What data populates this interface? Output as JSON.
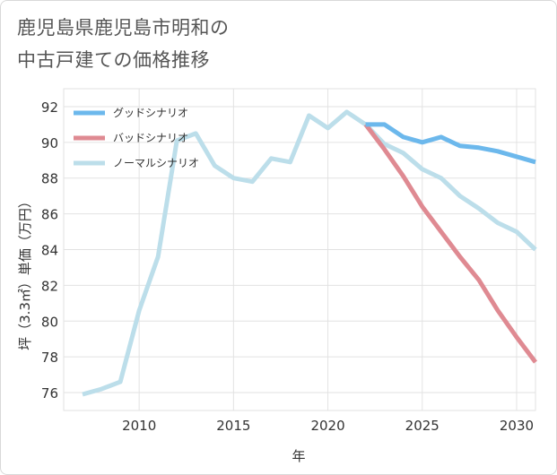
{
  "title": {
    "line1": "鹿児島県鹿児島市明和の",
    "line2": "中古戸建ての価格推移"
  },
  "chart_data": {
    "type": "line",
    "xlabel": "年",
    "ylabel": "坪（3.3㎡）単価（万円）",
    "xlim": [
      2006,
      2031
    ],
    "ylim": [
      75,
      93
    ],
    "xticks": [
      2010,
      2015,
      2020,
      2025,
      2030
    ],
    "yticks": [
      76,
      78,
      80,
      82,
      84,
      86,
      88,
      90,
      92
    ],
    "legend_position": "top-left",
    "series": [
      {
        "name": "グッドシナリオ",
        "color": "#6cb8ec",
        "points": [
          [
            2022,
            91.0
          ],
          [
            2023,
            91.0
          ],
          [
            2024,
            90.3
          ],
          [
            2025,
            90.0
          ],
          [
            2026,
            90.3
          ],
          [
            2027,
            89.8
          ],
          [
            2028,
            89.7
          ],
          [
            2029,
            89.5
          ],
          [
            2030,
            89.2
          ],
          [
            2031,
            88.9
          ]
        ]
      },
      {
        "name": "バッドシナリオ",
        "color": "#df8a92",
        "points": [
          [
            2022,
            91.0
          ],
          [
            2023,
            89.6
          ],
          [
            2024,
            88.1
          ],
          [
            2025,
            86.4
          ],
          [
            2026,
            85.0
          ],
          [
            2027,
            83.6
          ],
          [
            2028,
            82.3
          ],
          [
            2029,
            80.6
          ],
          [
            2030,
            79.1
          ],
          [
            2031,
            77.7
          ]
        ]
      },
      {
        "name": "ノーマルシナリオ",
        "color": "#bcdeea",
        "points": [
          [
            2007,
            75.9
          ],
          [
            2008,
            76.2
          ],
          [
            2009,
            76.6
          ],
          [
            2010,
            80.6
          ],
          [
            2011,
            83.6
          ],
          [
            2012,
            90.1
          ],
          [
            2013,
            90.5
          ],
          [
            2014,
            88.7
          ],
          [
            2015,
            88.0
          ],
          [
            2016,
            87.8
          ],
          [
            2017,
            89.1
          ],
          [
            2018,
            88.9
          ],
          [
            2019,
            91.5
          ],
          [
            2020,
            90.8
          ],
          [
            2021,
            91.7
          ],
          [
            2022,
            91.0
          ],
          [
            2023,
            89.9
          ],
          [
            2024,
            89.4
          ],
          [
            2025,
            88.5
          ],
          [
            2026,
            88.0
          ],
          [
            2027,
            87.0
          ],
          [
            2028,
            86.3
          ],
          [
            2029,
            85.5
          ],
          [
            2030,
            85.0
          ],
          [
            2031,
            84.0
          ]
        ]
      }
    ]
  }
}
